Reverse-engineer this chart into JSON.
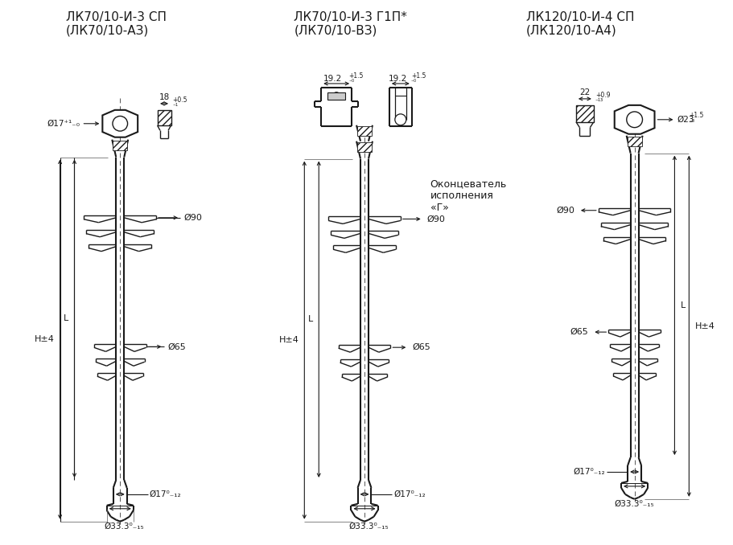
{
  "bg_color": "#ffffff",
  "line_color": "#1a1a1a",
  "title1_line1": "ЛК70/10-И-3 СП",
  "title1_line2": "(ЛК70/10-АЗ)",
  "title2_line1": "ЛК70/10-И-3 Г1П*",
  "title2_line2": "(ЛК70/10-ВЗ)",
  "title3_line1": "ЛК120/10-И-4 СП",
  "title3_line2": "(ЛК120/10-А4)",
  "annotation_line1": "Оконцеватель",
  "annotation_line2": "исполнения",
  "annotation_line3": "«Г»",
  "figsize": [
    9.12,
    6.78
  ],
  "dpi": 100
}
